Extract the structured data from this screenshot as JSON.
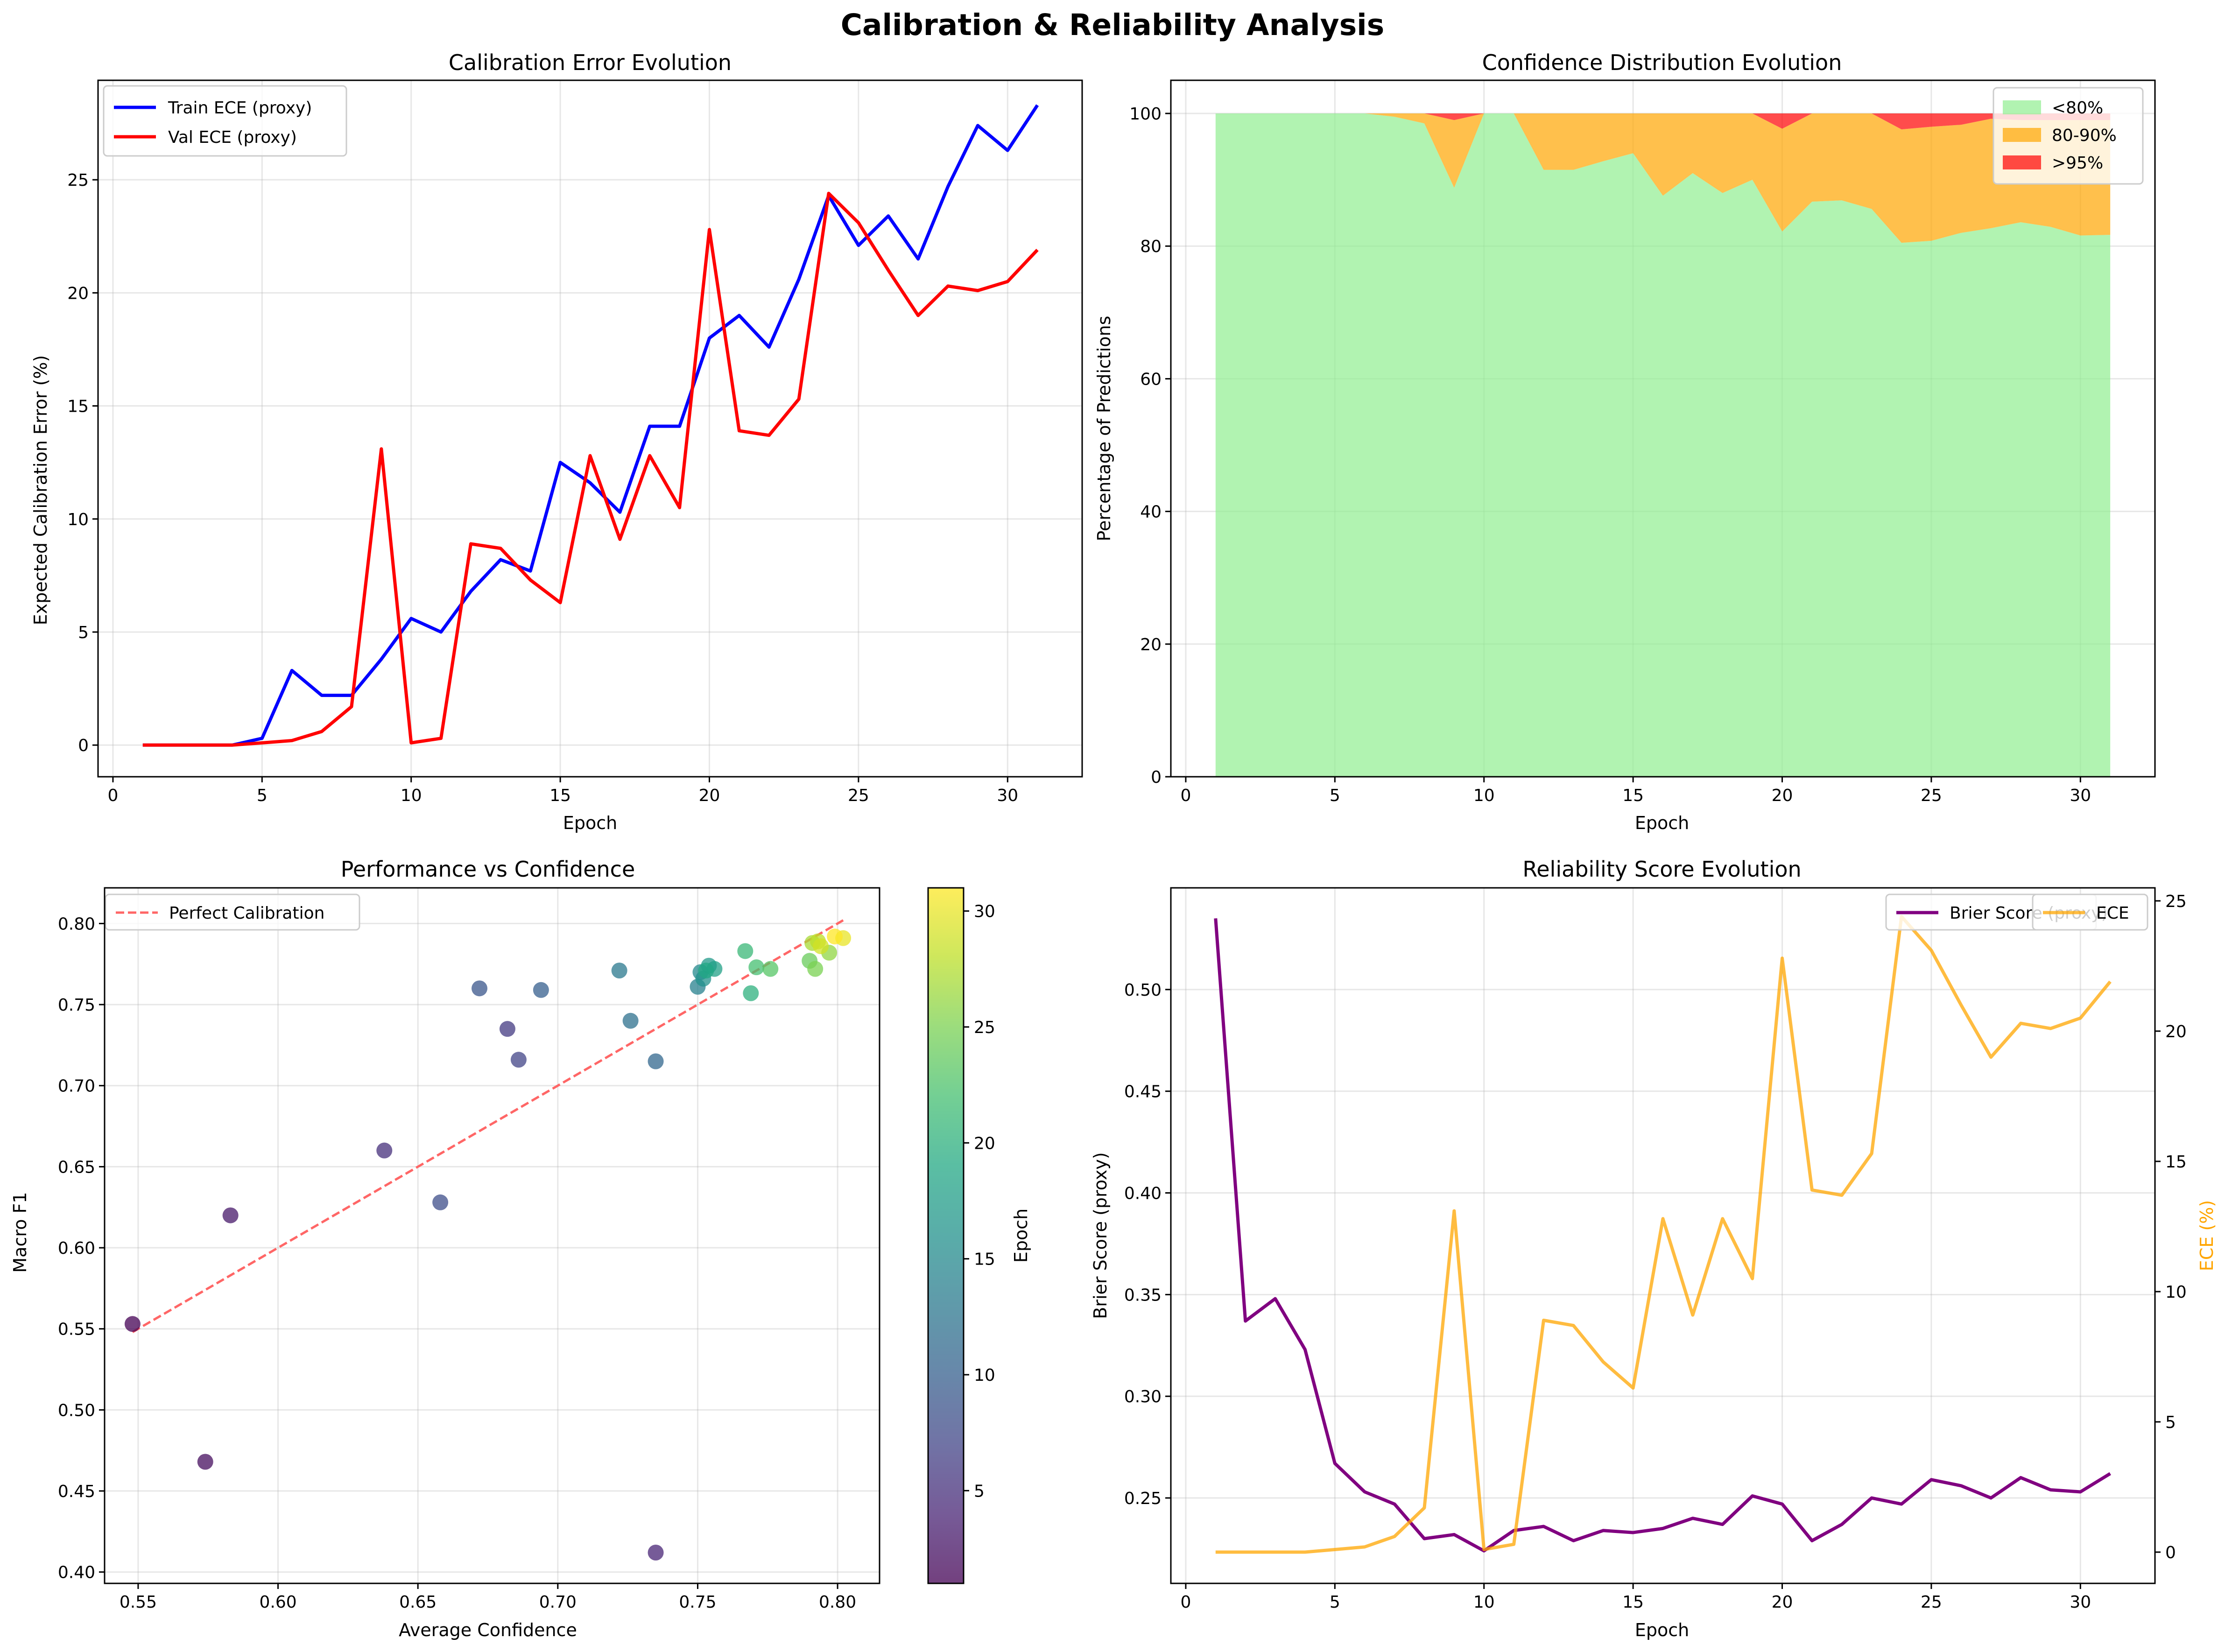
{
  "figure_title": "Calibration & Reliability Analysis",
  "chart_data": [
    {
      "type": "line",
      "title": "Calibration Error Evolution",
      "xlabel": "Epoch",
      "ylabel": "Expected Calibration Error (%)",
      "xlim": [
        -0.5,
        32.5
      ],
      "ylim": [
        -1.4,
        29.4
      ],
      "xticks": [
        0,
        5,
        10,
        15,
        20,
        25,
        30
      ],
      "yticks": [
        0,
        5,
        10,
        15,
        20,
        25
      ],
      "grid": true,
      "legend_position": "upper-left",
      "x": [
        1,
        2,
        3,
        4,
        5,
        6,
        7,
        8,
        9,
        10,
        11,
        12,
        13,
        14,
        15,
        16,
        17,
        18,
        19,
        20,
        21,
        22,
        23,
        24,
        25,
        26,
        27,
        28,
        29,
        30,
        31
      ],
      "series": [
        {
          "name": "Train ECE (proxy)",
          "color": "#0000ff",
          "values": [
            0,
            0,
            0,
            0,
            0.3,
            3.3,
            2.2,
            2.2,
            3.8,
            5.6,
            5.0,
            6.8,
            8.2,
            7.7,
            12.5,
            11.6,
            10.3,
            14.1,
            14.1,
            18.0,
            19.0,
            17.6,
            20.6,
            24.3,
            22.1,
            23.4,
            21.5,
            24.7,
            27.4,
            26.3,
            28.3
          ]
        },
        {
          "name": "Val ECE (proxy)",
          "color": "#ff0000",
          "values": [
            0,
            0,
            0,
            0,
            0.1,
            0.2,
            0.6,
            1.7,
            13.1,
            0.1,
            0.3,
            8.9,
            8.7,
            7.3,
            6.3,
            12.8,
            9.1,
            12.8,
            10.5,
            22.8,
            13.9,
            13.7,
            15.3,
            24.4,
            23.1,
            21.0,
            19.0,
            20.3,
            20.1,
            20.5,
            21.9
          ]
        }
      ]
    },
    {
      "type": "area",
      "stacked": true,
      "title": "Confidence Distribution Evolution",
      "xlabel": "Epoch",
      "ylabel": "Percentage of Predictions",
      "xlim": [
        -0.5,
        32.5
      ],
      "ylim": [
        0,
        105
      ],
      "xticks": [
        0,
        5,
        10,
        15,
        20,
        25,
        30
      ],
      "yticks": [
        0,
        20,
        40,
        60,
        80,
        100
      ],
      "grid": true,
      "legend_position": "upper-right",
      "x": [
        1,
        2,
        3,
        4,
        5,
        6,
        7,
        8,
        9,
        10,
        11,
        12,
        13,
        14,
        15,
        16,
        17,
        18,
        19,
        20,
        21,
        22,
        23,
        24,
        25,
        26,
        27,
        28,
        29,
        30,
        31
      ],
      "series": [
        {
          "name": "<80%",
          "color": "#90ee90",
          "values": [
            100,
            100,
            100,
            100,
            100,
            100,
            99.5,
            98.5,
            88.8,
            100,
            100,
            91.5,
            91.5,
            92.8,
            94.0,
            87.6,
            91.0,
            88.0,
            90.0,
            82.2,
            86.7,
            86.9,
            85.6,
            80.5,
            80.8,
            82.0,
            82.7,
            83.6,
            82.9,
            81.6,
            81.7
          ]
        },
        {
          "name": "80-90%",
          "color": "#ffa500",
          "values": [
            0,
            0,
            0,
            0,
            0,
            0,
            0.5,
            1.5,
            10.2,
            0,
            0,
            8.5,
            8.5,
            7.2,
            6.0,
            12.4,
            9.0,
            12.0,
            10.0,
            15.5,
            13.3,
            13.1,
            14.4,
            17.1,
            17.2,
            16.3,
            16.5,
            15.4,
            16.1,
            17.4,
            17.3
          ]
        },
        {
          "name": ">95%",
          "color": "#ff0000",
          "values": [
            0,
            0,
            0,
            0,
            0,
            0,
            0,
            0,
            1.0,
            0,
            0,
            0,
            0,
            0,
            0,
            0,
            0,
            0,
            0,
            2.3,
            0,
            0,
            0,
            2.4,
            2.0,
            1.7,
            0.8,
            1.0,
            1.0,
            1.0,
            1.0
          ]
        }
      ]
    },
    {
      "type": "scatter",
      "title": "Performance vs Confidence",
      "xlabel": "Average Confidence",
      "ylabel": "Macro F1",
      "xlim": [
        0.538,
        0.815
      ],
      "ylim": [
        0.393,
        0.822
      ],
      "xticks": [
        0.55,
        0.6,
        0.65,
        0.7,
        0.75,
        0.8
      ],
      "yticks": [
        0.4,
        0.45,
        0.5,
        0.55,
        0.6,
        0.65,
        0.7,
        0.75,
        0.8
      ],
      "grid": true,
      "legend_position": "upper-left",
      "reference_line": {
        "name": "Perfect Calibration",
        "color": "#ff6666",
        "from": [
          0.548,
          0.548
        ],
        "to": [
          0.802,
          0.802
        ]
      },
      "colorbar": {
        "label": "Epoch",
        "min": 1,
        "max": 31,
        "ticks": [
          5,
          10,
          15,
          20,
          25,
          30
        ],
        "colormap": "viridis"
      },
      "points": [
        {
          "x": 0.548,
          "y": 0.553,
          "epoch": 1
        },
        {
          "x": 0.574,
          "y": 0.468,
          "epoch": 2
        },
        {
          "x": 0.583,
          "y": 0.62,
          "epoch": 3
        },
        {
          "x": 0.735,
          "y": 0.412,
          "epoch": 4
        },
        {
          "x": 0.638,
          "y": 0.66,
          "epoch": 5
        },
        {
          "x": 0.682,
          "y": 0.735,
          "epoch": 6
        },
        {
          "x": 0.686,
          "y": 0.716,
          "epoch": 7
        },
        {
          "x": 0.658,
          "y": 0.628,
          "epoch": 8
        },
        {
          "x": 0.672,
          "y": 0.76,
          "epoch": 9
        },
        {
          "x": 0.694,
          "y": 0.759,
          "epoch": 10
        },
        {
          "x": 0.735,
          "y": 0.715,
          "epoch": 11
        },
        {
          "x": 0.726,
          "y": 0.74,
          "epoch": 12
        },
        {
          "x": 0.722,
          "y": 0.771,
          "epoch": 13
        },
        {
          "x": 0.75,
          "y": 0.761,
          "epoch": 14
        },
        {
          "x": 0.751,
          "y": 0.77,
          "epoch": 15
        },
        {
          "x": 0.752,
          "y": 0.766,
          "epoch": 16
        },
        {
          "x": 0.754,
          "y": 0.774,
          "epoch": 17
        },
        {
          "x": 0.756,
          "y": 0.772,
          "epoch": 18
        },
        {
          "x": 0.753,
          "y": 0.771,
          "epoch": 19
        },
        {
          "x": 0.769,
          "y": 0.757,
          "epoch": 20
        },
        {
          "x": 0.767,
          "y": 0.783,
          "epoch": 21
        },
        {
          "x": 0.771,
          "y": 0.773,
          "epoch": 22
        },
        {
          "x": 0.776,
          "y": 0.772,
          "epoch": 23
        },
        {
          "x": 0.79,
          "y": 0.777,
          "epoch": 24
        },
        {
          "x": 0.792,
          "y": 0.772,
          "epoch": 25
        },
        {
          "x": 0.797,
          "y": 0.782,
          "epoch": 26
        },
        {
          "x": 0.791,
          "y": 0.788,
          "epoch": 27
        },
        {
          "x": 0.793,
          "y": 0.789,
          "epoch": 28
        },
        {
          "x": 0.794,
          "y": 0.786,
          "epoch": 29
        },
        {
          "x": 0.802,
          "y": 0.791,
          "epoch": 30
        },
        {
          "x": 0.799,
          "y": 0.792,
          "epoch": 31
        }
      ]
    },
    {
      "type": "line",
      "title": "Reliability Score Evolution",
      "xlabel": "Epoch",
      "ylabel": "Brier Score (proxy)",
      "ylabel_right": "ECE (%)",
      "xlim": [
        -0.5,
        32.5
      ],
      "ylim": [
        0.208,
        0.55
      ],
      "ylim_right": [
        -1.2,
        25.5
      ],
      "xticks": [
        0,
        5,
        10,
        15,
        20,
        25,
        30
      ],
      "yticks": [
        0.25,
        0.3,
        0.35,
        0.4,
        0.45,
        0.5
      ],
      "yticks_right": [
        0,
        5,
        10,
        15,
        20,
        25
      ],
      "grid": true,
      "legend_position": "upper-right",
      "x": [
        1,
        2,
        3,
        4,
        5,
        6,
        7,
        8,
        9,
        10,
        11,
        12,
        13,
        14,
        15,
        16,
        17,
        18,
        19,
        20,
        21,
        22,
        23,
        24,
        25,
        26,
        27,
        28,
        29,
        30,
        31
      ],
      "series": [
        {
          "name": "Brier Score (proxy)",
          "color": "#800080",
          "axis": "left",
          "values": [
            0.535,
            0.337,
            0.348,
            0.323,
            0.267,
            0.253,
            0.247,
            0.23,
            0.232,
            0.224,
            0.234,
            0.236,
            0.229,
            0.234,
            0.233,
            0.235,
            0.24,
            0.237,
            0.251,
            0.247,
            0.229,
            0.237,
            0.25,
            0.247,
            0.259,
            0.256,
            0.25,
            0.26,
            0.254,
            0.253,
            0.262
          ]
        },
        {
          "name": "ECE",
          "color": "#ffa500",
          "axis": "right",
          "values": [
            0,
            0,
            0,
            0,
            0.1,
            0.2,
            0.6,
            1.7,
            13.1,
            0.1,
            0.3,
            8.9,
            8.7,
            7.3,
            6.3,
            12.8,
            9.1,
            12.8,
            10.5,
            22.8,
            13.9,
            13.7,
            15.3,
            24.4,
            23.1,
            21.0,
            19.0,
            20.3,
            20.1,
            20.5,
            21.9
          ]
        }
      ]
    }
  ]
}
